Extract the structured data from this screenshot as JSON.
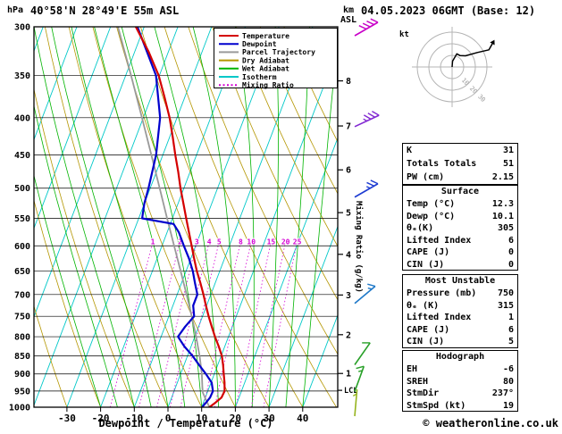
{
  "header": {
    "station": "40°58'N 28°49'E 55m ASL",
    "datetime": "04.05.2023 06GMT (Base: 12)"
  },
  "axes": {
    "pressure_unit": "hPa",
    "altitude_unit_line1": "km",
    "altitude_unit_line2": "ASL",
    "x_label": "Dewpoint / Temperature (°C)",
    "mixing_axis_label": "Mixing Ratio (g/kg)",
    "lcl_label": "LCL"
  },
  "legend": [
    {
      "label": "Temperature",
      "color": "#d40000",
      "dash": ""
    },
    {
      "label": "Dewpoint",
      "color": "#0000cd",
      "dash": ""
    },
    {
      "label": "Parcel Trajectory",
      "color": "#9a9a9a",
      "dash": ""
    },
    {
      "label": "Dry Adiabat",
      "color": "#b49600",
      "dash": ""
    },
    {
      "label": "Wet Adiabat",
      "color": "#00b400",
      "dash": ""
    },
    {
      "label": "Isotherm",
      "color": "#00c8c8",
      "dash": ""
    },
    {
      "label": "Mixing Ratio",
      "color": "#d400d4",
      "dash": "2,2.5"
    }
  ],
  "chart_data": {
    "type": "skewt_log_p",
    "pressure_range_hpa": [
      300,
      1000
    ],
    "pressure_ticks": [
      300,
      350,
      400,
      450,
      500,
      550,
      600,
      650,
      700,
      750,
      800,
      850,
      900,
      950,
      1000
    ],
    "temp_ticks_c": [
      -30,
      -20,
      -10,
      0,
      10,
      20,
      30,
      40
    ],
    "km_ticks": [
      1,
      2,
      3,
      4,
      5,
      6,
      7,
      8
    ],
    "lcl_pressure": 948,
    "skew_ratio": 0.38,
    "isotherms_c": {
      "min": -120,
      "max": 40,
      "step": 10
    },
    "dry_adiabats_c": {
      "min": -40,
      "max": 100,
      "step": 10
    },
    "wet_adiabats_c": {
      "min": -20,
      "max": 40,
      "step": 5
    },
    "mixing_ratio_lines_gkg": [
      1,
      2,
      3,
      4,
      5,
      8,
      10,
      15,
      20,
      25
    ],
    "colors": {
      "temperature": "#d40000",
      "dewpoint": "#0000cd",
      "parcel": "#9a9a9a",
      "dry_adiabat": "#b49600",
      "wet_adiabat": "#00b400",
      "isotherm": "#00c8c8",
      "mixing_ratio": "#d400d4",
      "grid": "#000000"
    },
    "temperature_profile_p_c": [
      [
        1000,
        12.3
      ],
      [
        985,
        13.6
      ],
      [
        970,
        14.8
      ],
      [
        950,
        15.0
      ],
      [
        925,
        14.0
      ],
      [
        900,
        12.8
      ],
      [
        875,
        11.6
      ],
      [
        850,
        10.2
      ],
      [
        825,
        8.2
      ],
      [
        800,
        6.0
      ],
      [
        775,
        3.9
      ],
      [
        750,
        1.8
      ],
      [
        725,
        -0.2
      ],
      [
        700,
        -2.2
      ],
      [
        675,
        -4.4
      ],
      [
        650,
        -6.8
      ],
      [
        625,
        -9.0
      ],
      [
        600,
        -11.2
      ],
      [
        575,
        -13.5
      ],
      [
        550,
        -15.9
      ],
      [
        525,
        -18.4
      ],
      [
        500,
        -21.0
      ],
      [
        475,
        -23.5
      ],
      [
        450,
        -26.3
      ],
      [
        425,
        -29.1
      ],
      [
        400,
        -32.2
      ],
      [
        375,
        -36.0
      ],
      [
        350,
        -40.2
      ],
      [
        325,
        -45.8
      ],
      [
        300,
        -52.5
      ]
    ],
    "dewpoint_profile_p_c": [
      [
        1000,
        10.1
      ],
      [
        985,
        10.8
      ],
      [
        970,
        11.4
      ],
      [
        950,
        11.5
      ],
      [
        925,
        10.2
      ],
      [
        900,
        7.5
      ],
      [
        875,
        4.5
      ],
      [
        850,
        1.5
      ],
      [
        825,
        -2.0
      ],
      [
        800,
        -5.0
      ],
      [
        775,
        -4.0
      ],
      [
        750,
        -2.5
      ],
      [
        725,
        -4.0
      ],
      [
        700,
        -4.0
      ],
      [
        675,
        -6.0
      ],
      [
        650,
        -8.0
      ],
      [
        625,
        -10.5
      ],
      [
        600,
        -13.5
      ],
      [
        575,
        -16.5
      ],
      [
        560,
        -19.0
      ],
      [
        550,
        -29.0
      ],
      [
        525,
        -30.0
      ],
      [
        500,
        -30.5
      ],
      [
        450,
        -32.0
      ],
      [
        400,
        -35.0
      ],
      [
        350,
        -41.0
      ],
      [
        300,
        -52.0
      ]
    ],
    "parcel_profile_p_c": [
      [
        1000,
        12.3
      ],
      [
        975,
        10.3
      ],
      [
        955,
        8.7
      ],
      [
        940,
        8.0
      ],
      [
        900,
        6.3
      ],
      [
        850,
        3.6
      ],
      [
        800,
        0.4
      ],
      [
        750,
        -3.2
      ],
      [
        700,
        -7.2
      ],
      [
        650,
        -11.6
      ],
      [
        600,
        -16.4
      ],
      [
        550,
        -21.6
      ],
      [
        500,
        -27.2
      ],
      [
        450,
        -33.4
      ],
      [
        400,
        -40.4
      ],
      [
        350,
        -48.4
      ],
      [
        300,
        -57.8
      ]
    ],
    "wind_barbs": [
      {
        "p": 300,
        "speed_kt": 40,
        "dir_deg": 240,
        "color": "#c800c8"
      },
      {
        "p": 400,
        "speed_kt": 35,
        "dir_deg": 245,
        "color": "#8228d2"
      },
      {
        "p": 500,
        "speed_kt": 25,
        "dir_deg": 240,
        "color": "#1e3cd2"
      },
      {
        "p": 700,
        "speed_kt": 15,
        "dir_deg": 230,
        "color": "#1e78c8"
      },
      {
        "p": 850,
        "speed_kt": 10,
        "dir_deg": 215,
        "color": "#28a028"
      },
      {
        "p": 925,
        "speed_kt": 15,
        "dir_deg": 200,
        "color": "#28a028"
      },
      {
        "p": 1000,
        "speed_kt": 5,
        "dir_deg": 185,
        "color": "#96b41e"
      }
    ],
    "hodograph": {
      "unit_label": "kt",
      "rings_kt": [
        10,
        20,
        30
      ],
      "trace_uv_kt": [
        [
          0.4,
          5.0
        ],
        [
          4.1,
          11.3
        ],
        [
          6.9,
          9.8
        ],
        [
          11.5,
          9.6
        ],
        [
          21.7,
          12.5
        ],
        [
          31.7,
          14.8
        ],
        [
          34.6,
          20.0
        ]
      ]
    }
  },
  "panel": {
    "indices": {
      "rows": [
        {
          "label": "K",
          "value": "31"
        },
        {
          "label": "Totals Totals",
          "value": "51"
        },
        {
          "label": "PW (cm)",
          "value": "2.15"
        }
      ]
    },
    "surface": {
      "title": "Surface",
      "rows": [
        {
          "label": "Temp (°C)",
          "value": "12.3"
        },
        {
          "label": "Dewp (°C)",
          "value": "10.1"
        },
        {
          "label": "θₑ(K)",
          "value": "305"
        },
        {
          "label": "Lifted Index",
          "value": "6"
        },
        {
          "label": "CAPE (J)",
          "value": "0"
        },
        {
          "label": "CIN (J)",
          "value": "0"
        }
      ]
    },
    "most_unstable": {
      "title": "Most Unstable",
      "rows": [
        {
          "label": "Pressure (mb)",
          "value": "750"
        },
        {
          "label": "θₑ (K)",
          "value": "315"
        },
        {
          "label": "Lifted Index",
          "value": "1"
        },
        {
          "label": "CAPE (J)",
          "value": "6"
        },
        {
          "label": "CIN (J)",
          "value": "5"
        }
      ]
    },
    "hodograph": {
      "title": "Hodograph",
      "rows": [
        {
          "label": "EH",
          "value": "-6"
        },
        {
          "label": "SREH",
          "value": "80"
        },
        {
          "label": "StmDir",
          "value": "237°"
        },
        {
          "label": "StmSpd (kt)",
          "value": "19"
        }
      ]
    }
  },
  "footer": {
    "copyright": "© weatheronline.co.uk"
  }
}
